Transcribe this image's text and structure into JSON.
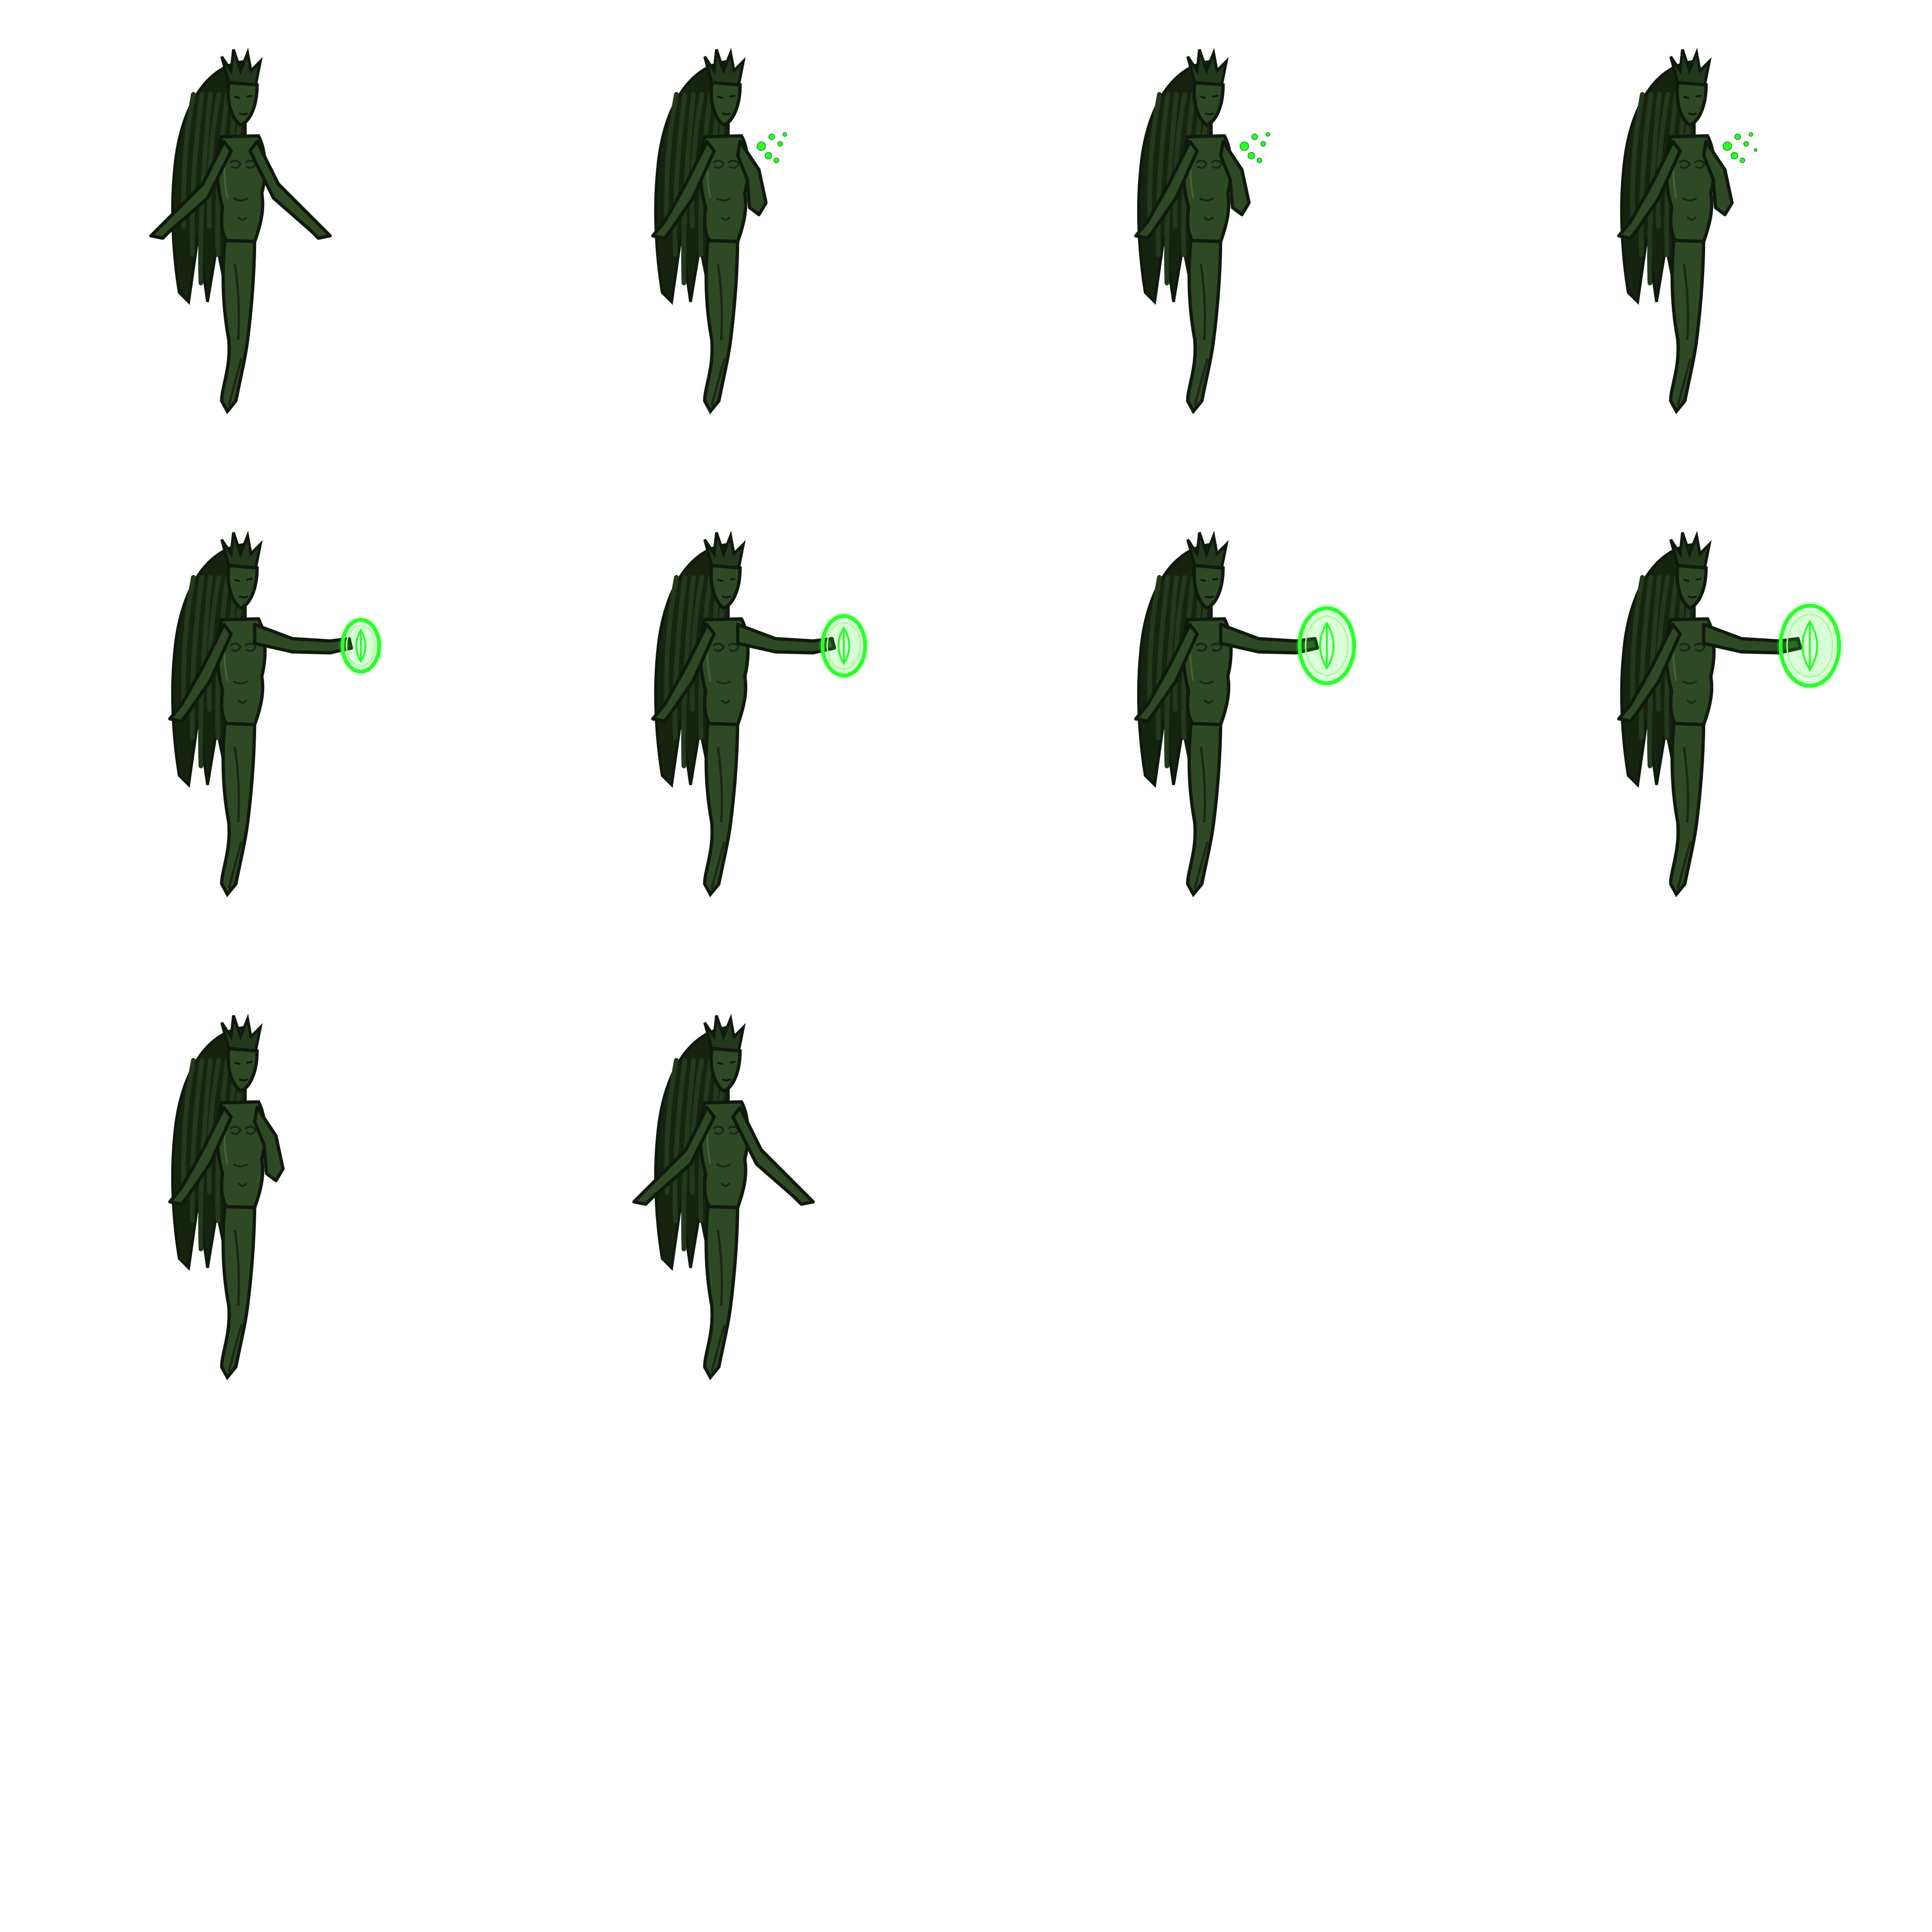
{
  "sprite_sheet": {
    "grid": {
      "columns": 4,
      "rows": 4
    },
    "frame_count": 10,
    "colors": {
      "background": "#ffffff",
      "outline": "#0f1a0d",
      "wing_dark": "#16240f",
      "wing_mid": "#24391b",
      "body": "#2d4a25",
      "body_light": "#4d6e3e",
      "bark_mark": "#182812",
      "magic_glow": "#2bff2b",
      "magic_core": "#a8ff9a"
    },
    "frames": [
      {
        "pose": "arms-spread",
        "effect": "none",
        "effect_level": 0
      },
      {
        "pose": "hand-to-chest",
        "effect": "sparkles",
        "effect_level": 0.35
      },
      {
        "pose": "hand-to-chest",
        "effect": "sparkles",
        "effect_level": 0.4
      },
      {
        "pose": "hand-to-chest",
        "effect": "sparkles",
        "effect_level": 0.45
      },
      {
        "pose": "arm-extended",
        "effect": "sigil",
        "effect_level": 0.45
      },
      {
        "pose": "arm-extended",
        "effect": "sigil",
        "effect_level": 0.6
      },
      {
        "pose": "arm-extended",
        "effect": "sigil",
        "effect_level": 0.9
      },
      {
        "pose": "arm-extended",
        "effect": "sigil",
        "effect_level": 1.0
      },
      {
        "pose": "hand-to-chest",
        "effect": "none",
        "effect_level": 0
      },
      {
        "pose": "arms-spread",
        "effect": "none",
        "effect_level": 0
      }
    ]
  }
}
